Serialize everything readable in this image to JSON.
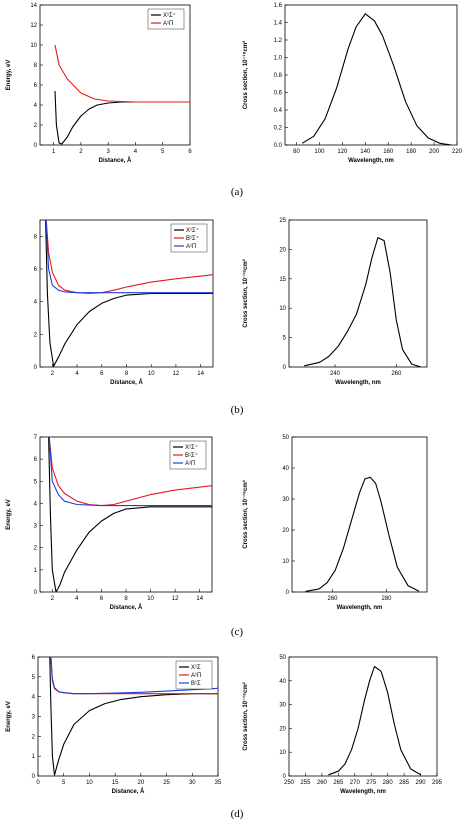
{
  "captions": [
    "(a)",
    "(b)",
    "(c)",
    "(d)"
  ],
  "chart_data": [
    {
      "panel": "a",
      "side": "left",
      "type": "line",
      "xlabel": "Distance, Å",
      "ylabel": "Energy, eV",
      "xlim": [
        0.5,
        6
      ],
      "ylim": [
        0,
        14
      ],
      "xticks": [
        1,
        2,
        3,
        4,
        5,
        6
      ],
      "yticks": [
        0,
        2,
        4,
        6,
        8,
        10,
        12,
        14
      ],
      "legend": "top-right",
      "series": [
        {
          "name": "X¹Σ⁺",
          "color": "#000000",
          "x": [
            1.05,
            1.1,
            1.2,
            1.3,
            1.5,
            1.7,
            2.0,
            2.3,
            2.6,
            3.0,
            3.5,
            4.0,
            5.0,
            6.0
          ],
          "y": [
            5.4,
            2.0,
            0.2,
            0.1,
            0.8,
            1.8,
            2.9,
            3.6,
            4.0,
            4.2,
            4.3,
            4.3,
            4.3,
            4.3
          ]
        },
        {
          "name": "A¹Π",
          "color": "#e41a1c",
          "x": [
            1.05,
            1.2,
            1.5,
            2.0,
            2.5,
            3.0,
            3.5,
            4.0,
            5.0,
            6.0
          ],
          "y": [
            10.0,
            8.0,
            6.6,
            5.2,
            4.6,
            4.4,
            4.35,
            4.3,
            4.3,
            4.3
          ]
        }
      ]
    },
    {
      "panel": "a",
      "side": "right",
      "type": "line",
      "xlabel": "Wavelength, nm",
      "ylabel": "Cross section, 10⁻¹⁸cm²",
      "xlim": [
        70,
        220
      ],
      "ylim": [
        0,
        1.6
      ],
      "xticks": [
        80,
        100,
        120,
        140,
        160,
        180,
        200,
        220
      ],
      "yticks": [
        0.0,
        0.2,
        0.4,
        0.6,
        0.8,
        1.0,
        1.2,
        1.4,
        1.6
      ],
      "series": [
        {
          "name": "",
          "color": "#000000",
          "x": [
            85,
            95,
            105,
            115,
            125,
            132,
            140,
            148,
            155,
            165,
            175,
            185,
            195,
            205,
            215
          ],
          "y": [
            0.02,
            0.1,
            0.3,
            0.65,
            1.1,
            1.35,
            1.5,
            1.42,
            1.25,
            0.9,
            0.5,
            0.22,
            0.08,
            0.02,
            0.0
          ]
        }
      ]
    },
    {
      "panel": "b",
      "side": "left",
      "type": "line",
      "xlabel": "Distance, Å",
      "ylabel": "",
      "xlim": [
        1,
        15
      ],
      "ylim": [
        0,
        9
      ],
      "xticks": [
        2,
        4,
        6,
        8,
        10,
        12,
        14
      ],
      "yticks": [
        0,
        2,
        4,
        6,
        8
      ],
      "legend": "top-right",
      "series": [
        {
          "name": "X¹Σ⁺",
          "color": "#000000",
          "x": [
            1.45,
            1.6,
            1.8,
            2.1,
            2.5,
            3.0,
            4.0,
            5.0,
            6.0,
            7.0,
            8.0,
            10.0,
            12.0,
            15.0
          ],
          "y": [
            9.0,
            4.5,
            1.5,
            0.05,
            0.6,
            1.4,
            2.6,
            3.4,
            3.9,
            4.2,
            4.4,
            4.5,
            4.5,
            4.5
          ]
        },
        {
          "name": "B¹Σ⁺",
          "color": "#e41a1c",
          "x": [
            1.5,
            1.7,
            2.0,
            2.5,
            3.0,
            4.0,
            5.0,
            6.0,
            7.0,
            8.0,
            10.0,
            12.0,
            15.0
          ],
          "y": [
            9.0,
            7.0,
            5.8,
            5.0,
            4.7,
            4.55,
            4.5,
            4.55,
            4.7,
            4.9,
            5.2,
            5.4,
            5.65
          ]
        },
        {
          "name": "A¹Π",
          "color": "#1f3fd6",
          "x": [
            1.5,
            1.7,
            2.0,
            2.5,
            3.0,
            4.0,
            6.0,
            8.0,
            10.0,
            15.0
          ],
          "y": [
            9.0,
            6.0,
            5.0,
            4.7,
            4.6,
            4.55,
            4.55,
            4.55,
            4.55,
            4.55
          ]
        }
      ]
    },
    {
      "panel": "b",
      "side": "right",
      "type": "line",
      "xlabel": "Wavelength, nm",
      "ylabel": "Cross section, 10⁻¹⁸cm²",
      "xlim": [
        225,
        270
      ],
      "ylim": [
        0,
        25
      ],
      "xticks": [
        240,
        260
      ],
      "yticks": [
        0,
        5,
        10,
        15,
        20,
        25
      ],
      "series": [
        {
          "name": "",
          "color": "#000000",
          "x": [
            230,
            235,
            238,
            241,
            244,
            247,
            250,
            252,
            254,
            256,
            258,
            260,
            262,
            265,
            268
          ],
          "y": [
            0.2,
            0.8,
            1.8,
            3.5,
            6.0,
            9.0,
            14.0,
            18.5,
            22.0,
            21.5,
            16.0,
            8.0,
            3.0,
            0.5,
            0.0
          ]
        }
      ]
    },
    {
      "panel": "c",
      "side": "left",
      "type": "line",
      "xlabel": "Distance, Å",
      "ylabel": "Energy, eV",
      "xlim": [
        1,
        15
      ],
      "ylim": [
        0,
        7
      ],
      "xticks": [
        2,
        4,
        6,
        8,
        10,
        12,
        14
      ],
      "yticks": [
        0,
        1,
        2,
        3,
        4,
        5,
        6,
        7
      ],
      "legend": "top-right",
      "series": [
        {
          "name": "X¹Σ⁺",
          "color": "#000000",
          "x": [
            1.7,
            1.85,
            2.0,
            2.3,
            2.6,
            3.0,
            4.0,
            5.0,
            6.0,
            7.0,
            8.0,
            10.0,
            12.0,
            15.0
          ],
          "y": [
            7.0,
            3.5,
            1.0,
            0.0,
            0.3,
            0.9,
            1.9,
            2.7,
            3.2,
            3.55,
            3.75,
            3.85,
            3.85,
            3.85
          ]
        },
        {
          "name": "B¹Σ⁺",
          "color": "#e41a1c",
          "x": [
            1.75,
            2.0,
            2.5,
            3.0,
            4.0,
            5.0,
            6.0,
            7.0,
            8.0,
            10.0,
            12.0,
            15.0
          ],
          "y": [
            7.0,
            5.6,
            4.8,
            4.45,
            4.1,
            3.95,
            3.9,
            3.95,
            4.1,
            4.4,
            4.6,
            4.8
          ]
        },
        {
          "name": "A¹Π",
          "color": "#1f3fd6",
          "x": [
            1.75,
            2.0,
            2.5,
            3.0,
            4.0,
            6.0,
            8.0,
            10.0,
            15.0
          ],
          "y": [
            7.0,
            5.0,
            4.4,
            4.1,
            3.95,
            3.9,
            3.9,
            3.9,
            3.9
          ]
        }
      ]
    },
    {
      "panel": "c",
      "side": "right",
      "type": "line",
      "xlabel": "Wavelength, nm",
      "ylabel": "Cross section, 10⁻¹⁸cm²",
      "xlim": [
        245,
        295
      ],
      "ylim": [
        0,
        50
      ],
      "xticks": [
        260,
        280
      ],
      "yticks": [
        0,
        10,
        20,
        30,
        40,
        50
      ],
      "series": [
        {
          "name": "",
          "color": "#000000",
          "x": [
            250,
            255,
            258,
            261,
            264,
            267,
            270,
            272,
            274,
            276,
            278,
            281,
            284,
            288,
            292
          ],
          "y": [
            0.2,
            1.0,
            3.0,
            7.0,
            14.0,
            23.0,
            32.0,
            36.5,
            37.0,
            35.0,
            29.0,
            18.0,
            8.0,
            2.0,
            0.3
          ]
        }
      ]
    },
    {
      "panel": "d",
      "side": "left",
      "type": "line",
      "xlabel": "Distance, Å",
      "ylabel": "Energy, eV",
      "xlim": [
        0,
        35
      ],
      "ylim": [
        0,
        6
      ],
      "xticks": [
        0,
        5,
        10,
        15,
        20,
        25,
        30,
        35
      ],
      "yticks": [
        0,
        1,
        2,
        3,
        4,
        5,
        6
      ],
      "legend": "top-right",
      "series": [
        {
          "name": "X¹Σ",
          "color": "#000000",
          "x": [
            2.3,
            2.5,
            2.8,
            3.2,
            4.0,
            5.0,
            7.0,
            10.0,
            13.0,
            16.0,
            20.0,
            25.0,
            30.0,
            35.0
          ],
          "y": [
            6.0,
            3.5,
            1.0,
            0.05,
            0.8,
            1.6,
            2.6,
            3.3,
            3.65,
            3.85,
            4.0,
            4.1,
            4.15,
            4.15
          ]
        },
        {
          "name": "A¹Π",
          "color": "#e41a1c",
          "x": [
            2.5,
            2.8,
            3.2,
            4.0,
            5.0,
            7.0,
            10.0,
            15.0,
            20.0,
            25.0,
            30.0,
            35.0
          ],
          "y": [
            6.0,
            4.8,
            4.4,
            4.25,
            4.2,
            4.15,
            4.15,
            4.15,
            4.15,
            4.15,
            4.15,
            4.15
          ]
        },
        {
          "name": "B¹Σ",
          "color": "#1f3fd6",
          "x": [
            2.5,
            2.8,
            3.2,
            4.0,
            5.0,
            7.0,
            10.0,
            15.0,
            20.0,
            25.0,
            30.0,
            35.0
          ],
          "y": [
            6.0,
            4.9,
            4.45,
            4.25,
            4.2,
            4.15,
            4.15,
            4.18,
            4.22,
            4.28,
            4.35,
            4.42
          ]
        }
      ]
    },
    {
      "panel": "d",
      "side": "right",
      "type": "line",
      "xlabel": "Wavelength, nm",
      "ylabel": "Cross section, 10⁻¹⁸cm²",
      "xlim": [
        250,
        295
      ],
      "ylim": [
        0,
        50
      ],
      "xticks": [
        250,
        255,
        260,
        265,
        270,
        275,
        280,
        285,
        290,
        295
      ],
      "yticks": [
        0,
        10,
        20,
        30,
        40,
        50
      ],
      "series": [
        {
          "name": "",
          "color": "#000000",
          "x": [
            262,
            265,
            267,
            269,
            271,
            273,
            274.5,
            276,
            278,
            280,
            282,
            284,
            287,
            290
          ],
          "y": [
            0.5,
            2.0,
            5.0,
            11.0,
            20.0,
            32.0,
            40.0,
            46.0,
            44.0,
            35.0,
            22.0,
            11.0,
            3.0,
            0.5
          ]
        }
      ]
    }
  ]
}
